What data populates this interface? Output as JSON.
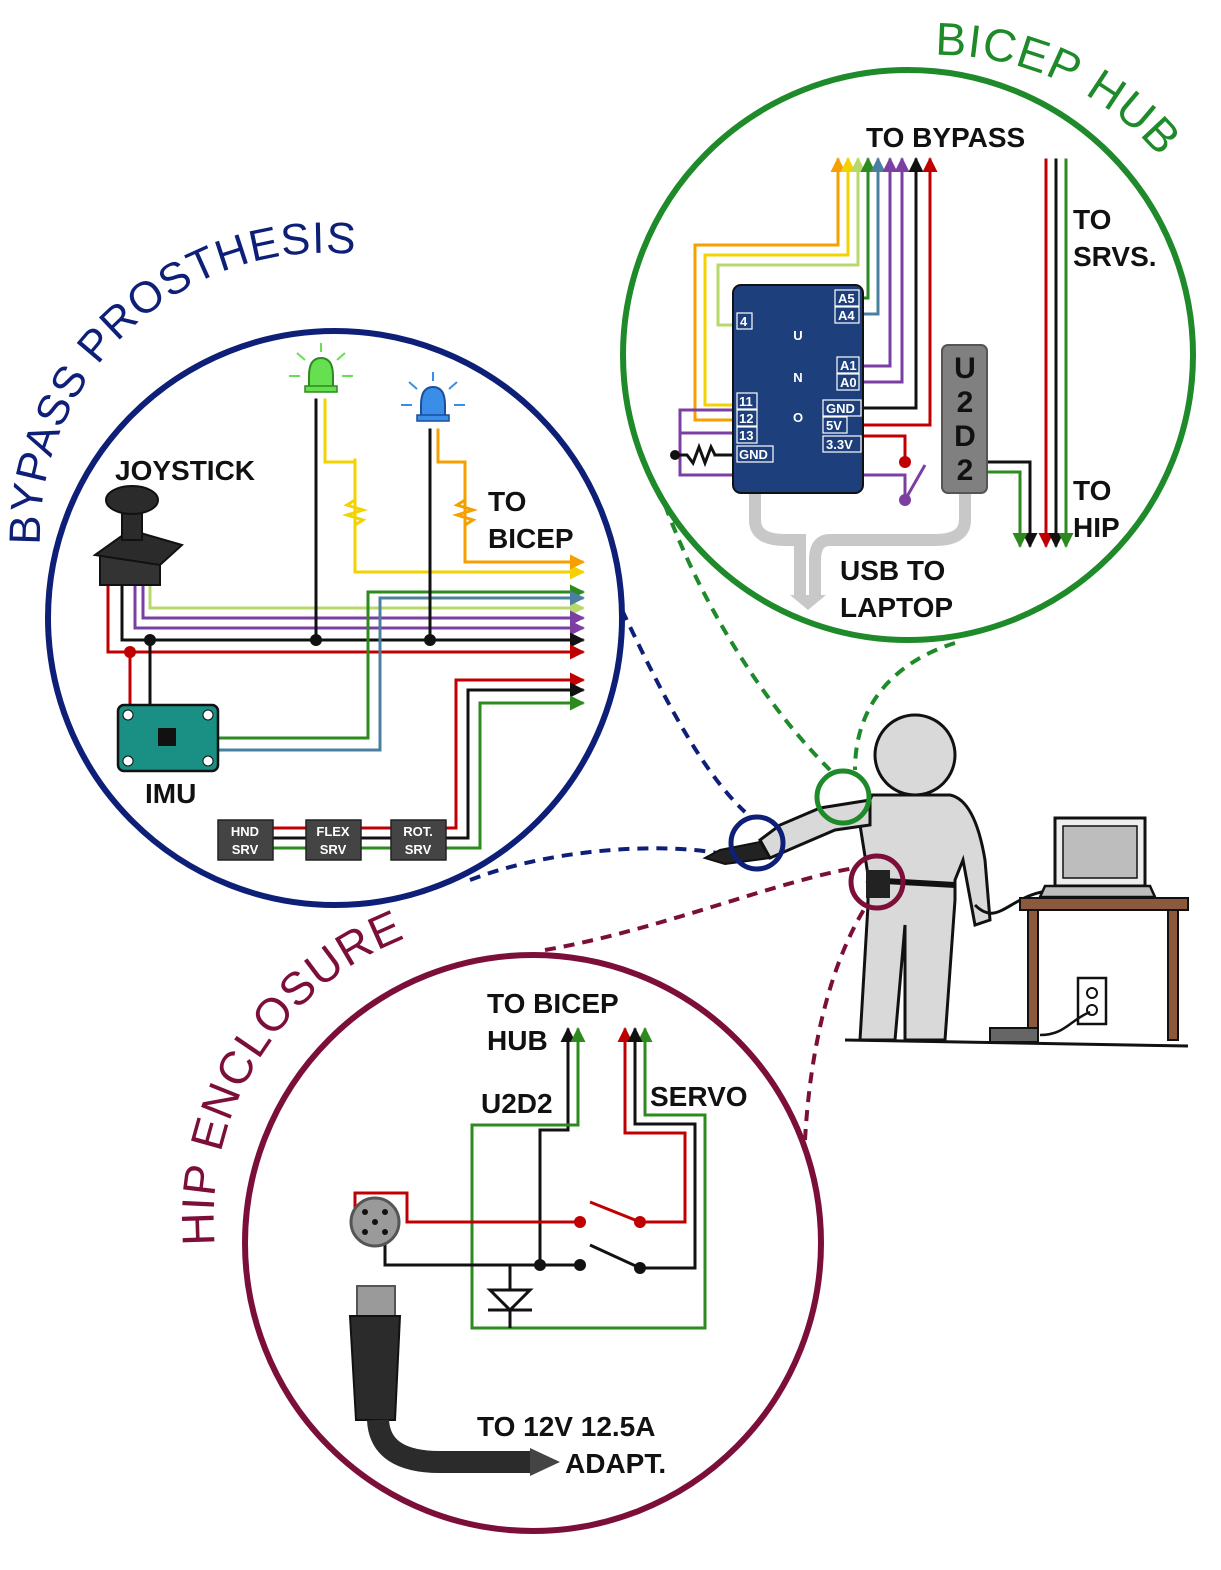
{
  "colors": {
    "bypass": "#0e1f78",
    "bicep": "#1e8a2a",
    "hip": "#7c0f3a",
    "red": "#c00000",
    "black": "#111111",
    "purple": "#7b3fa3",
    "green": "#2d8a1e",
    "yellow": "#f2d200",
    "orange": "#f5a000",
    "lime": "#b8d86b",
    "steel": "#4a7fa0",
    "uno": "#1d3f7c",
    "u2d2": "#808080",
    "person": "#d9d9d9"
  },
  "bypass": {
    "title": "BYPASS PROSTHESIS",
    "joystick": "JOYSTICK",
    "imu": "IMU",
    "to_bicep_1": "TO",
    "to_bicep_2": "BICEP",
    "servos": [
      {
        "line1": "HND",
        "line2": "SRV"
      },
      {
        "line1": "FLEX",
        "line2": "SRV"
      },
      {
        "line1": "ROT.",
        "line2": "SRV"
      }
    ]
  },
  "bicep": {
    "title": "BICEP HUB",
    "to_bypass": "TO BYPASS",
    "to_srvs_1": "TO",
    "to_srvs_2": "SRVS.",
    "to_hip_1": "TO",
    "to_hip_2": "HIP",
    "usb_1": "USB TO",
    "usb_2": "LAPTOP",
    "uno_letters": [
      "U",
      "N",
      "O"
    ],
    "u2d2_letters": [
      "U",
      "2",
      "D",
      "2"
    ],
    "pins_left": [
      "4",
      "11",
      "12",
      "13",
      "GND"
    ],
    "pins_right": [
      "A5",
      "A4",
      "A1",
      "A0",
      "GND",
      "5V",
      "3.3V"
    ]
  },
  "hip": {
    "title": "HIP ENCLOSURE",
    "to_bicep_1": "TO BICEP",
    "to_bicep_2": "HUB",
    "u2d2": "U2D2",
    "servo": "SERVO",
    "adapter_1": "TO 12V 12.5A",
    "adapter_2": "ADAPT."
  }
}
